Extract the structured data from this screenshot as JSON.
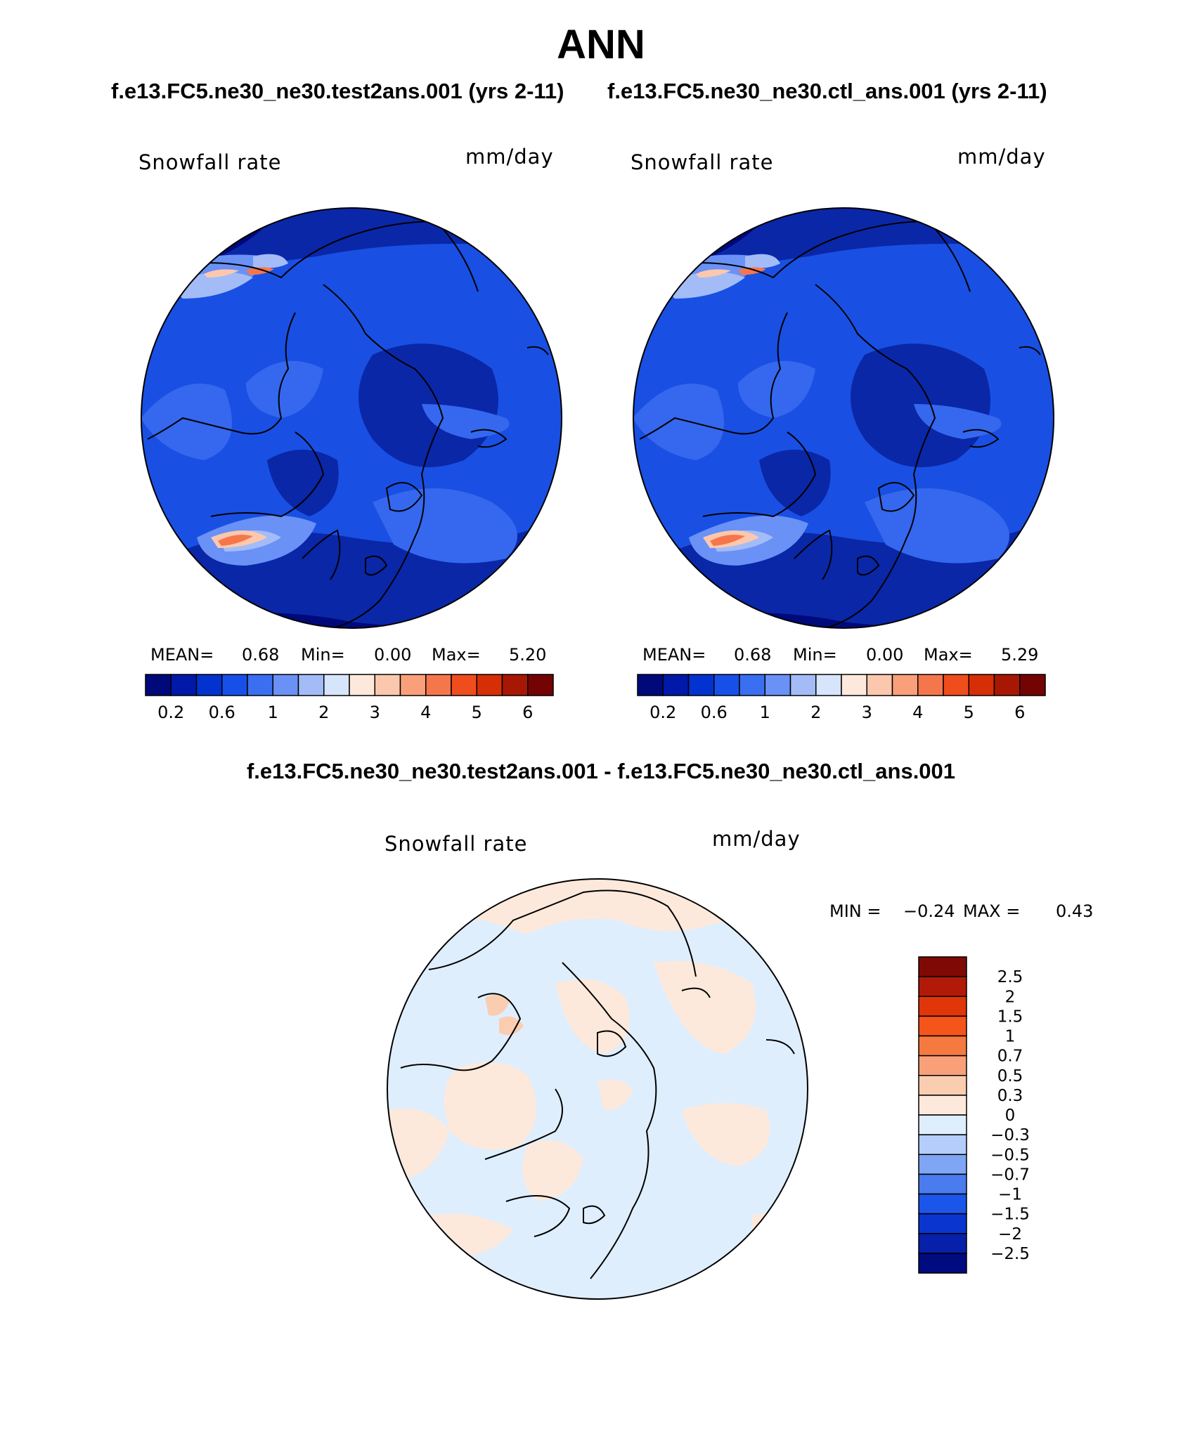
{
  "title": "ANN",
  "panels": [
    {
      "case_title": "f.e13.FC5.ne30_ne30.test2ans.001 (yrs 2-11)",
      "variable": "Snowfall rate",
      "units": "mm/day",
      "stats": {
        "mean_label": "MEAN=",
        "mean": "0.68",
        "min_label": "Min=",
        "min": "0.00",
        "max_label": "Max=",
        "max": "5.20"
      }
    },
    {
      "case_title": "f.e13.FC5.ne30_ne30.ctl_ans.001 (yrs 2-11)",
      "variable": "Snowfall rate",
      "units": "mm/day",
      "stats": {
        "mean_label": "MEAN=",
        "mean": "0.68",
        "min_label": "Min=",
        "min": "0.00",
        "max_label": "Max=",
        "max": "5.29"
      }
    }
  ],
  "diff": {
    "title": "f.e13.FC5.ne30_ne30.test2ans.001 - f.e13.FC5.ne30_ne30.ctl_ans.001",
    "variable": "Snowfall rate",
    "units": "mm/day",
    "min_label": "MIN =",
    "min": "−0.24",
    "max_label": "MAX =",
    "max": "0.43"
  },
  "chart_data": [
    {
      "type": "heatmap",
      "map": "north polar stereographic",
      "variable": "Snowfall rate",
      "units": "mm/day",
      "colorbar": {
        "orientation": "horizontal",
        "tick_labels": [
          "0.2",
          "0.6",
          "1",
          "2",
          "3",
          "4",
          "5",
          "6"
        ],
        "colors": [
          "#00097a",
          "#0019a8",
          "#0232cf",
          "#1750e8",
          "#3b6ff2",
          "#6a91f5",
          "#a3bcf8",
          "#d6e5fc",
          "#fde9db",
          "#fcc8ad",
          "#f9a07b",
          "#f6764c",
          "#f04d1d",
          "#d62e06",
          "#a81704",
          "#740303"
        ]
      },
      "mean": 0.68,
      "min": 0.0,
      "max": 5.2
    },
    {
      "type": "heatmap",
      "map": "north polar stereographic",
      "variable": "Snowfall rate",
      "units": "mm/day",
      "colorbar": {
        "orientation": "horizontal",
        "tick_labels": [
          "0.2",
          "0.6",
          "1",
          "2",
          "3",
          "4",
          "5",
          "6"
        ],
        "colors": [
          "#00097a",
          "#0019a8",
          "#0232cf",
          "#1750e8",
          "#3b6ff2",
          "#6a91f5",
          "#a3bcf8",
          "#d6e5fc",
          "#fde9db",
          "#fcc8ad",
          "#f9a07b",
          "#f6764c",
          "#f04d1d",
          "#d62e06",
          "#a81704",
          "#740303"
        ]
      },
      "mean": 0.68,
      "min": 0.0,
      "max": 5.29
    },
    {
      "type": "heatmap",
      "map": "north polar stereographic",
      "variable": "Snowfall rate",
      "units": "mm/day",
      "colorbar": {
        "orientation": "vertical",
        "tick_labels": [
          "2.5",
          "2",
          "1.5",
          "1",
          "0.7",
          "0.5",
          "0.3",
          "0",
          "−0.3",
          "−0.5",
          "−0.7",
          "−1",
          "−1.5",
          "−2",
          "−2.5"
        ],
        "colors": [
          "#7f0a05",
          "#b11a06",
          "#e0360a",
          "#f5541a",
          "#f57a40",
          "#f9a079",
          "#fbcdb0",
          "#fde9db",
          "#dfeefd",
          "#b4cdfb",
          "#7ea6f4",
          "#4a7cf0",
          "#1c55ea",
          "#0a35cf",
          "#0720a9",
          "#000b80"
        ]
      },
      "min": -0.24,
      "max": 0.43
    }
  ],
  "palette": {
    "ocean_blue": "#1950e3",
    "deep_blue": "#0a27a8",
    "mid_blue": "#3568ee",
    "light_blue": "#8fb0f6",
    "diff_neg": "#dfeefd",
    "diff_pos": "#fde9db"
  }
}
